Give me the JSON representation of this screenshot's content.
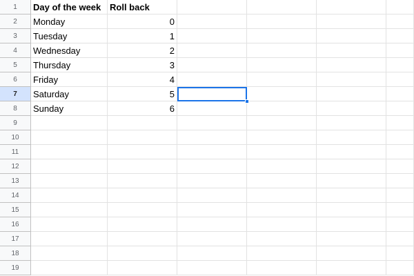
{
  "sheet": {
    "header_row": {
      "col_a": "Day of the week",
      "col_b": "Roll back"
    },
    "rows": [
      {
        "day": "Monday",
        "value": "0"
      },
      {
        "day": "Tuesday",
        "value": "1"
      },
      {
        "day": "Wednesday",
        "value": "2"
      },
      {
        "day": "Thursday",
        "value": "3"
      },
      {
        "day": "Friday",
        "value": "4"
      },
      {
        "day": "Saturday",
        "value": "5"
      },
      {
        "day": "Sunday",
        "value": "6"
      }
    ],
    "row_numbers": [
      "1",
      "2",
      "3",
      "4",
      "5",
      "6",
      "7",
      "8",
      "9",
      "10",
      "11",
      "12",
      "13",
      "14",
      "15",
      "16",
      "17",
      "18",
      "19"
    ],
    "selected_cell": "C7",
    "colors": {
      "selection": "#1a73e8",
      "row_header_bg": "#f8f9fa",
      "active_row_header_bg": "#d3e3fd",
      "gridline": "#e2e2e2"
    }
  }
}
